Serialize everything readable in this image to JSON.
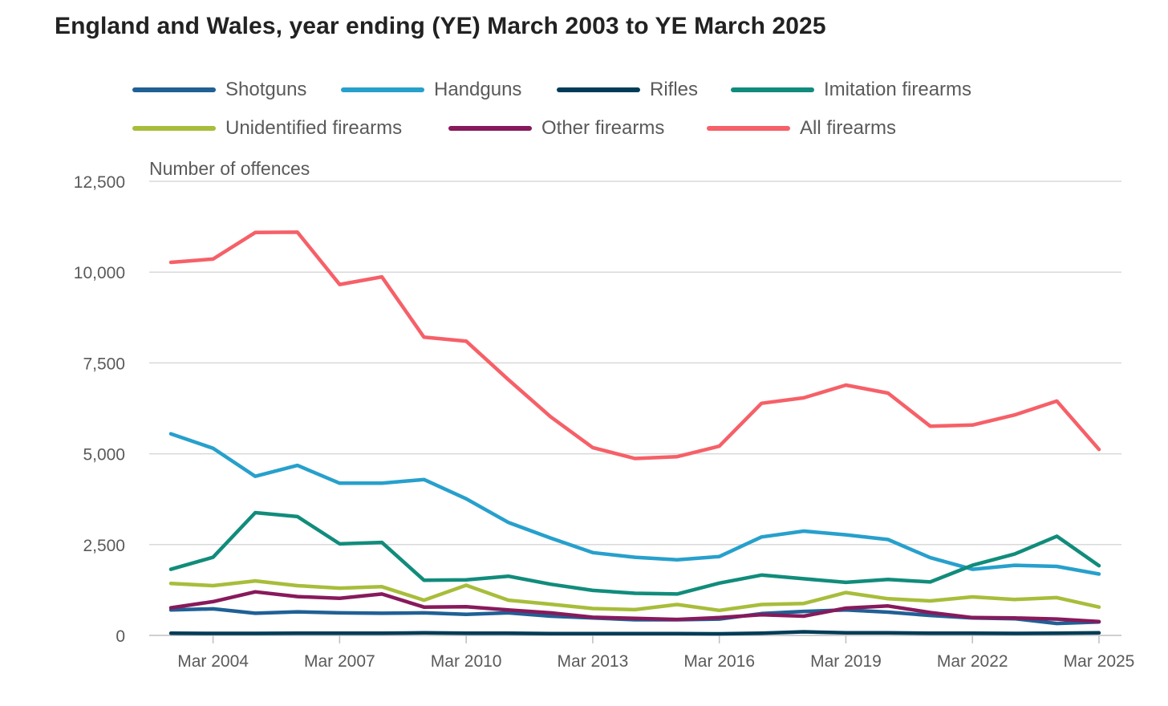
{
  "chart_data": {
    "type": "line",
    "title": "England and Wales, year ending (YE) March 2003 to YE March 2025",
    "ylabel": "Number of offences",
    "xlabel": "",
    "ylim": [
      0,
      12500
    ],
    "yticks": [
      0,
      2500,
      5000,
      7500,
      10000,
      12500
    ],
    "ytick_labels": [
      "0",
      "2,500",
      "5,000",
      "7,500",
      "10,000",
      "12,500"
    ],
    "x": [
      2003,
      2004,
      2005,
      2006,
      2007,
      2008,
      2009,
      2010,
      2011,
      2012,
      2013,
      2014,
      2015,
      2016,
      2017,
      2018,
      2019,
      2020,
      2021,
      2022,
      2023,
      2024,
      2025
    ],
    "xticks": [
      2004,
      2007,
      2010,
      2013,
      2016,
      2019,
      2022,
      2025
    ],
    "xtick_labels": [
      "Mar 2004",
      "Mar 2007",
      "Mar 2010",
      "Mar 2013",
      "Mar 2016",
      "Mar 2019",
      "Mar 2022",
      "Mar 2025"
    ],
    "grid": true,
    "legend_position": "top",
    "series": [
      {
        "name": "Shotguns",
        "color": "#206095",
        "values": [
          700,
          730,
          610,
          650,
          620,
          610,
          620,
          580,
          620,
          530,
          480,
          430,
          430,
          450,
          600,
          660,
          700,
          640,
          550,
          480,
          460,
          330,
          370
        ]
      },
      {
        "name": "Handguns",
        "color": "#27a0cc",
        "values": [
          5550,
          5150,
          4380,
          4680,
          4190,
          4190,
          4290,
          3760,
          3110,
          2680,
          2280,
          2150,
          2080,
          2170,
          2710,
          2870,
          2770,
          2640,
          2140,
          1820,
          1930,
          1900,
          1690
        ]
      },
      {
        "name": "Rifles",
        "color": "#003c57",
        "values": [
          60,
          55,
          55,
          60,
          60,
          60,
          70,
          60,
          60,
          50,
          50,
          50,
          50,
          45,
          60,
          100,
          70,
          70,
          60,
          60,
          55,
          60,
          70
        ]
      },
      {
        "name": "Imitation firearms",
        "color": "#118c7b",
        "values": [
          1820,
          2150,
          3380,
          3270,
          2520,
          2560,
          1520,
          1530,
          1630,
          1410,
          1240,
          1160,
          1140,
          1440,
          1660,
          1560,
          1460,
          1540,
          1470,
          1930,
          2240,
          2730,
          1920
        ]
      },
      {
        "name": "Unidentified firearms",
        "color": "#a8bd3a",
        "values": [
          1430,
          1370,
          1500,
          1370,
          1300,
          1340,
          970,
          1380,
          970,
          860,
          740,
          710,
          850,
          690,
          850,
          880,
          1180,
          1010,
          950,
          1060,
          990,
          1040,
          780
        ]
      },
      {
        "name": "Other firearms",
        "color": "#871a5b",
        "values": [
          760,
          930,
          1200,
          1070,
          1020,
          1140,
          780,
          790,
          700,
          620,
          500,
          470,
          440,
          490,
          570,
          530,
          750,
          810,
          630,
          490,
          480,
          450,
          380
        ]
      },
      {
        "name": "All firearms",
        "color": "#f66068",
        "values": [
          10270,
          10360,
          11090,
          11100,
          9660,
          9870,
          8210,
          8100,
          7040,
          6020,
          5170,
          4870,
          4920,
          5210,
          6390,
          6540,
          6890,
          6670,
          5760,
          5790,
          6070,
          6450,
          5120
        ]
      }
    ]
  }
}
